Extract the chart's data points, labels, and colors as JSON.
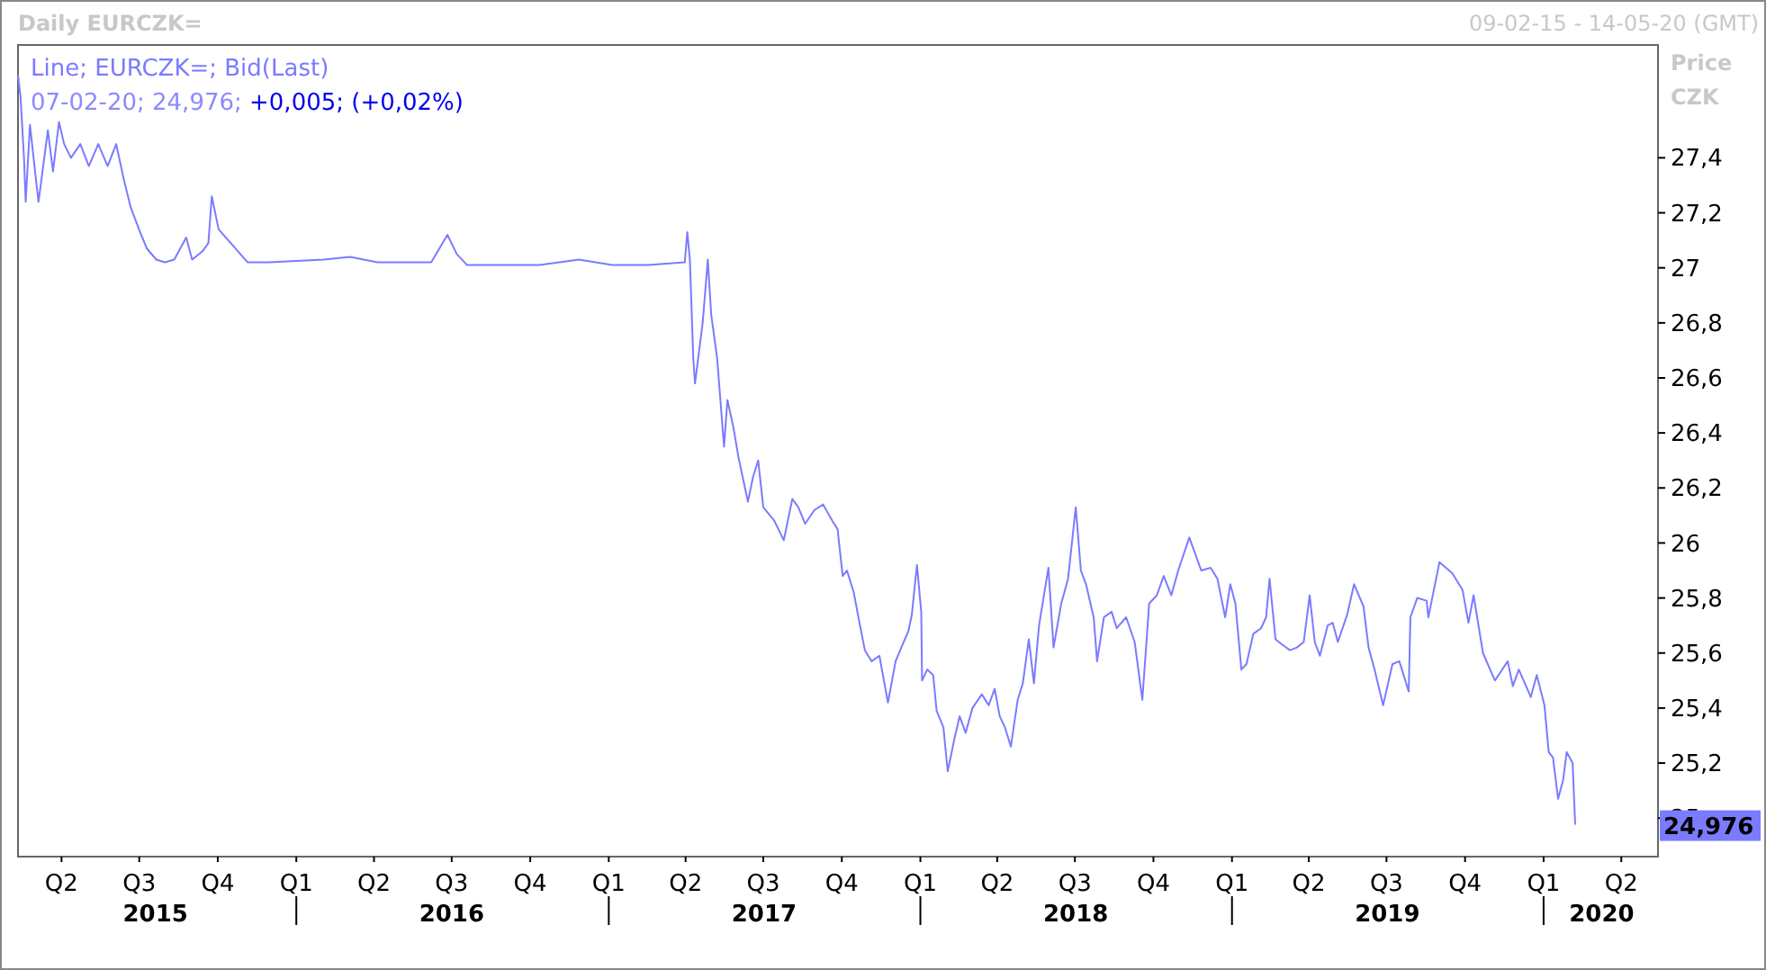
{
  "chart_data": {
    "type": "line",
    "title": "Daily EURCZK=",
    "subtitle": "09-02-15 - 14-05-20 (GMT)",
    "ylabel": "Price CZK",
    "legend": "top left",
    "grid": false,
    "marker": "none",
    "line_style": "solid",
    "xlim": [
      "2015-02-09",
      "2020-05-14"
    ],
    "ylim": [
      24.86,
      27.81
    ],
    "xticks": [
      {
        "value": "2015-04-01",
        "label": "Q2"
      },
      {
        "value": "2015-07-01",
        "label": "Q3"
      },
      {
        "value": "2015-10-01",
        "label": "Q4"
      },
      {
        "value": "2016-01-01",
        "label": "Q1"
      },
      {
        "value": "2016-04-01",
        "label": "Q2"
      },
      {
        "value": "2016-07-01",
        "label": "Q3"
      },
      {
        "value": "2016-10-01",
        "label": "Q4"
      },
      {
        "value": "2017-01-01",
        "label": "Q1"
      },
      {
        "value": "2017-04-01",
        "label": "Q2"
      },
      {
        "value": "2017-07-01",
        "label": "Q3"
      },
      {
        "value": "2017-10-01",
        "label": "Q4"
      },
      {
        "value": "2018-01-01",
        "label": "Q1"
      },
      {
        "value": "2018-04-01",
        "label": "Q2"
      },
      {
        "value": "2018-07-01",
        "label": "Q3"
      },
      {
        "value": "2018-10-01",
        "label": "Q4"
      },
      {
        "value": "2019-01-01",
        "label": "Q1"
      },
      {
        "value": "2019-04-01",
        "label": "Q2"
      },
      {
        "value": "2019-07-01",
        "label": "Q3"
      },
      {
        "value": "2019-10-01",
        "label": "Q4"
      },
      {
        "value": "2020-01-01",
        "label": "Q1"
      },
      {
        "value": "2020-04-01",
        "label": "Q2"
      }
    ],
    "x2lim": [
      "2015-02-09",
      "2020-05-14"
    ],
    "x2ticks": [
      {
        "value": "2015-07-20",
        "label": "2015"
      },
      {
        "value": "2016-01-01",
        "label": null
      },
      {
        "value": "2016-07-01",
        "label": "2016"
      },
      {
        "value": "2017-01-01",
        "label": null
      },
      {
        "value": "2017-07-02",
        "label": "2017"
      },
      {
        "value": "2018-01-01",
        "label": null
      },
      {
        "value": "2018-07-02",
        "label": "2018"
      },
      {
        "value": "2019-01-01",
        "label": null
      },
      {
        "value": "2019-07-02",
        "label": "2019"
      },
      {
        "value": "2020-01-01",
        "label": null
      },
      {
        "value": "2020-03-09",
        "label": "2020"
      }
    ],
    "yticks": [
      25,
      {
        "value": 25.2,
        "label": "25,2"
      },
      {
        "value": 25.4,
        "label": "25,4"
      },
      {
        "value": 25.6,
        "label": "25,6"
      },
      {
        "value": 25.8,
        "label": "25,8"
      },
      26,
      {
        "value": 26.2,
        "label": "26,2"
      },
      {
        "value": 26.4,
        "label": "26,4"
      },
      {
        "value": 26.6,
        "label": "26,6"
      },
      {
        "value": 26.8,
        "label": "26,8"
      },
      27,
      {
        "value": 27.2,
        "label": "27,2"
      },
      {
        "value": 27.4,
        "label": "27,4"
      }
    ],
    "annotations": [
      "07-02-20; 24,976;",
      "+0,005; (+0,02%)",
      "24,976"
    ],
    "series": [
      {
        "name": "Line; EURCZK=; Bid(Last)",
        "color": "#7b7bff",
        "x": [
          "2015-02-09",
          "2015-02-12",
          "2015-02-16",
          "2015-02-18",
          "2015-02-23",
          "2015-03-01",
          "2015-03-05",
          "2015-03-16",
          "2015-03-22",
          "2015-03-29",
          "2015-04-04",
          "2015-04-12",
          "2015-04-23",
          "2015-05-03",
          "2015-05-14",
          "2015-05-25",
          "2015-06-04",
          "2015-06-13",
          "2015-06-21",
          "2015-07-02",
          "2015-07-10",
          "2015-07-21",
          "2015-07-31",
          "2015-08-11",
          "2015-08-25",
          "2015-09-01",
          "2015-09-13",
          "2015-09-20",
          "2015-09-24",
          "2015-10-02",
          "2015-10-19",
          "2015-11-05",
          "2015-11-30",
          "2016-02-02",
          "2016-03-04",
          "2016-04-05",
          "2016-05-07",
          "2016-06-07",
          "2016-06-26",
          "2016-07-07",
          "2016-07-19",
          "2016-08-31",
          "2016-10-12",
          "2016-11-27",
          "2017-01-05",
          "2017-02-16",
          "2017-03-31",
          "2017-04-03",
          "2017-04-06",
          "2017-04-10",
          "2017-04-12",
          "2017-04-21",
          "2017-04-27",
          "2017-05-01",
          "2017-05-08",
          "2017-05-16",
          "2017-05-20",
          "2017-05-27",
          "2017-06-02",
          "2017-06-13",
          "2017-06-19",
          "2017-06-25",
          "2017-07-01",
          "2017-07-14",
          "2017-07-25",
          "2017-08-04",
          "2017-08-11",
          "2017-08-19",
          "2017-08-30",
          "2017-09-09",
          "2017-09-20",
          "2017-09-26",
          "2017-10-02",
          "2017-10-07",
          "2017-10-15",
          "2017-10-21",
          "2017-10-28",
          "2017-11-05",
          "2017-11-14",
          "2017-11-24",
          "2017-12-03",
          "2017-12-11",
          "2017-12-18",
          "2017-12-22",
          "2017-12-28",
          "2018-01-02",
          "2018-01-03",
          "2018-01-09",
          "2018-01-16",
          "2018-01-20",
          "2018-01-28",
          "2018-02-02",
          "2018-02-10",
          "2018-02-16",
          "2018-02-23",
          "2018-03-03",
          "2018-03-14",
          "2018-03-22",
          "2018-03-29",
          "2018-04-04",
          "2018-04-10",
          "2018-04-17",
          "2018-04-25",
          "2018-05-01",
          "2018-05-08",
          "2018-05-14",
          "2018-05-20",
          "2018-05-31",
          "2018-06-06",
          "2018-06-15",
          "2018-06-23",
          "2018-07-02",
          "2018-07-08",
          "2018-07-14",
          "2018-07-23",
          "2018-07-27",
          "2018-08-04",
          "2018-08-13",
          "2018-08-19",
          "2018-08-30",
          "2018-09-09",
          "2018-09-18",
          "2018-09-26",
          "2018-10-05",
          "2018-10-13",
          "2018-10-22",
          "2018-10-30",
          "2018-11-12",
          "2018-11-26",
          "2018-12-07",
          "2018-12-15",
          "2018-12-24",
          "2018-12-30",
          "2019-01-05",
          "2019-01-12",
          "2019-01-18",
          "2019-01-26",
          "2019-02-04",
          "2019-02-10",
          "2019-02-14",
          "2019-02-21",
          "2019-03-01",
          "2019-03-10",
          "2019-03-18",
          "2019-03-26",
          "2019-04-02",
          "2019-04-08",
          "2019-04-14",
          "2019-04-23",
          "2019-04-29",
          "2019-05-05",
          "2019-05-16",
          "2019-05-24",
          "2019-06-04",
          "2019-06-10",
          "2019-06-17",
          "2019-06-27",
          "2019-07-08",
          "2019-07-16",
          "2019-07-27",
          "2019-07-29",
          "2019-08-06",
          "2019-08-17",
          "2019-08-19",
          "2019-09-01",
          "2019-09-16",
          "2019-09-28",
          "2019-10-05",
          "2019-10-11",
          "2019-10-22",
          "2019-11-05",
          "2019-11-20",
          "2019-11-26",
          "2019-12-03",
          "2019-12-17",
          "2019-12-24",
          "2020-01-02",
          "2020-01-07",
          "2020-01-12",
          "2020-01-18",
          "2020-01-24",
          "2020-01-28",
          "2020-02-04",
          "2020-02-07"
        ],
        "values": [
          27.7,
          27.62,
          27.4,
          27.24,
          27.52,
          27.35,
          27.24,
          27.5,
          27.35,
          27.53,
          27.45,
          27.4,
          27.45,
          27.37,
          27.45,
          27.37,
          27.45,
          27.32,
          27.22,
          27.13,
          27.07,
          27.03,
          27.02,
          27.03,
          27.11,
          27.03,
          27.06,
          27.09,
          27.26,
          27.14,
          27.08,
          27.02,
          27.02,
          27.03,
          27.04,
          27.02,
          27.02,
          27.02,
          27.12,
          27.05,
          27.01,
          27.01,
          27.01,
          27.03,
          27.01,
          27.01,
          27.02,
          27.13,
          27.03,
          26.67,
          26.58,
          26.8,
          27.03,
          26.83,
          26.67,
          26.35,
          26.52,
          26.42,
          26.31,
          26.15,
          26.24,
          26.3,
          26.13,
          26.08,
          26.01,
          26.16,
          26.13,
          26.07,
          26.12,
          26.14,
          26.08,
          26.05,
          25.88,
          25.9,
          25.82,
          25.72,
          25.61,
          25.57,
          25.59,
          25.42,
          25.57,
          25.63,
          25.68,
          25.74,
          25.92,
          25.75,
          25.5,
          25.54,
          25.52,
          25.39,
          25.33,
          25.17,
          25.29,
          25.37,
          25.31,
          25.4,
          25.45,
          25.41,
          25.47,
          25.37,
          25.33,
          25.26,
          25.43,
          25.49,
          25.65,
          25.49,
          25.7,
          25.91,
          25.62,
          25.78,
          25.87,
          26.13,
          25.9,
          25.85,
          25.73,
          25.57,
          25.73,
          25.75,
          25.69,
          25.73,
          25.64,
          25.43,
          25.78,
          25.81,
          25.88,
          25.81,
          25.9,
          26.02,
          25.9,
          25.91,
          25.87,
          25.73,
          25.85,
          25.78,
          25.54,
          25.56,
          25.67,
          25.69,
          25.73,
          25.87,
          25.65,
          25.63,
          25.61,
          25.62,
          25.64,
          25.81,
          25.64,
          25.59,
          25.7,
          25.71,
          25.64,
          25.74,
          25.85,
          25.77,
          25.62,
          25.54,
          25.41,
          25.56,
          25.57,
          25.46,
          25.73,
          25.8,
          25.79,
          25.73,
          25.93,
          25.89,
          25.83,
          25.71,
          25.81,
          25.6,
          25.5,
          25.57,
          25.48,
          25.54,
          25.44,
          25.52,
          25.41,
          25.24,
          25.22,
          25.07,
          25.14,
          25.24,
          25.2,
          24.976
        ]
      }
    ]
  }
}
